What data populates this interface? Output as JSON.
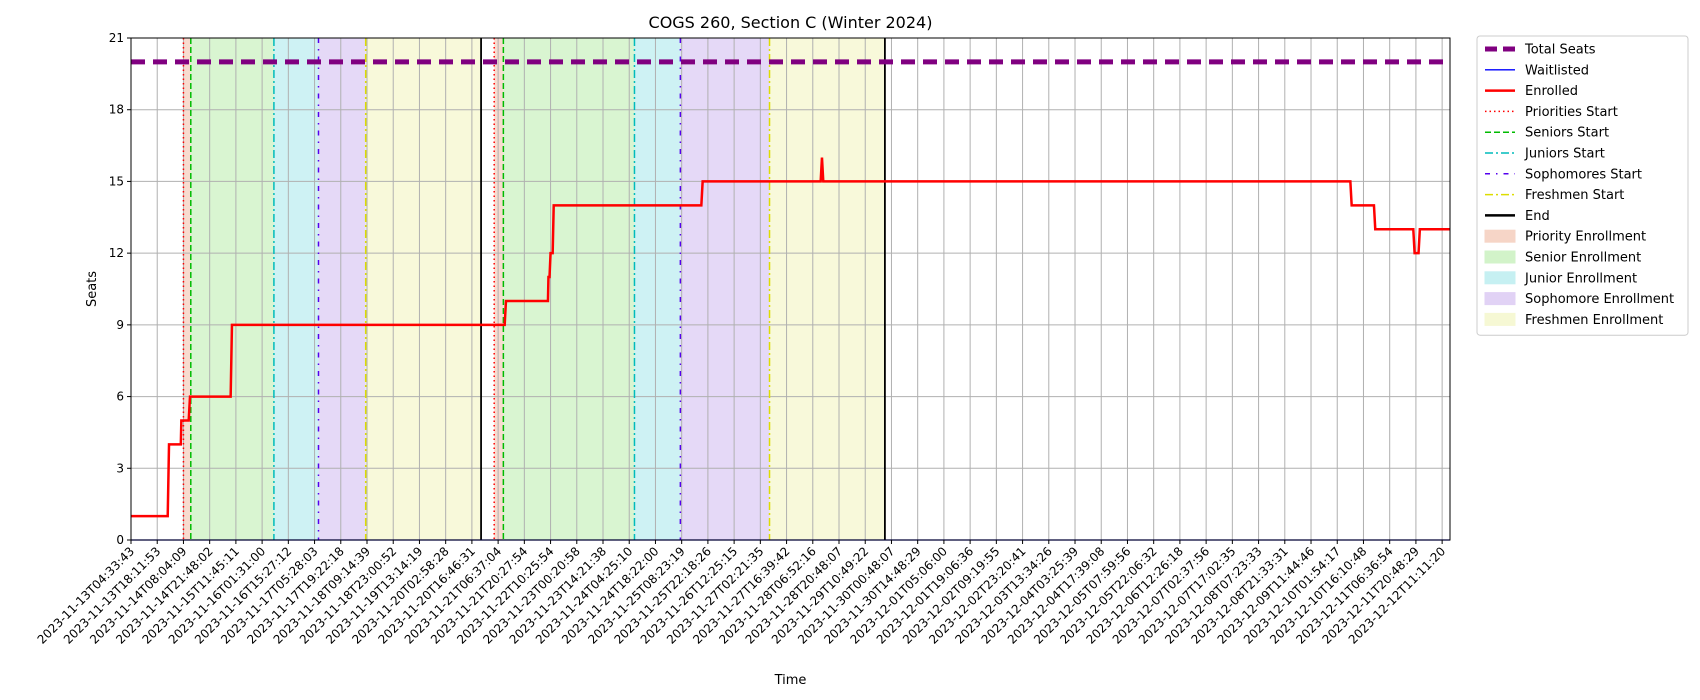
{
  "chart_data": {
    "type": "line",
    "title": "COGS 260, Section C (Winter 2024)",
    "xlabel": "Time",
    "ylabel": "Seats",
    "ylim": [
      0,
      21
    ],
    "yticks": [
      0,
      3,
      6,
      9,
      12,
      15,
      18,
      21
    ],
    "grid": true,
    "legend_position": "outside-right-top",
    "x_tick_labels": [
      "2023-11-13T04:33:43",
      "2023-11-13T18:11:53",
      "2023-11-14T08:04:09",
      "2023-11-14T21:48:02",
      "2023-11-15T11:45:11",
      "2023-11-16T01:31:00",
      "2023-11-16T15:27:12",
      "2023-11-17T05:28:03",
      "2023-11-17T19:22:18",
      "2023-11-18T09:14:39",
      "2023-11-18T23:00:52",
      "2023-11-19T13:14:19",
      "2023-11-20T02:58:28",
      "2023-11-20T16:46:31",
      "2023-11-21T06:37:04",
      "2023-11-21T20:27:54",
      "2023-11-22T10:25:54",
      "2023-11-23T00:20:58",
      "2023-11-23T14:21:38",
      "2023-11-24T04:25:10",
      "2023-11-24T18:22:00",
      "2023-11-25T08:23:19",
      "2023-11-25T22:18:26",
      "2023-11-26T12:25:15",
      "2023-11-27T02:21:35",
      "2023-11-27T16:39:42",
      "2023-11-28T06:52:16",
      "2023-11-28T20:48:07",
      "2023-11-29T10:49:22",
      "2023-11-30T00:48:07",
      "2023-11-30T14:48:29",
      "2023-12-01T05:06:00",
      "2023-12-01T19:06:36",
      "2023-12-02T09:19:55",
      "2023-12-02T23:20:41",
      "2023-12-03T13:34:26",
      "2023-12-04T03:25:39",
      "2023-12-04T17:39:08",
      "2023-12-05T07:59:56",
      "2023-12-05T22:06:32",
      "2023-12-06T12:26:18",
      "2023-12-07T02:37:56",
      "2023-12-07T17:02:35",
      "2023-12-08T07:23:33",
      "2023-12-08T21:33:31",
      "2023-12-09T11:44:46",
      "2023-12-10T01:54:17",
      "2023-12-10T16:10:48",
      "2023-12-11T06:36:54",
      "2023-12-11T20:48:29",
      "2023-12-12T11:11:20"
    ],
    "x_domain": [
      0,
      50.3
    ],
    "series": [
      {
        "name": "Total Seats",
        "color": "#800080",
        "style": "dashed-thick",
        "points": [
          [
            0,
            20
          ],
          [
            50.3,
            20
          ]
        ]
      },
      {
        "name": "Waitlisted",
        "color": "#0000ff",
        "style": "solid-thin",
        "points": [
          [
            0,
            0
          ],
          [
            50.3,
            0
          ]
        ]
      },
      {
        "name": "Enrolled",
        "color": "#ff0000",
        "style": "solid",
        "points": [
          [
            0,
            1
          ],
          [
            1.4,
            1
          ],
          [
            1.45,
            4
          ],
          [
            1.9,
            4
          ],
          [
            1.92,
            5
          ],
          [
            2.2,
            5
          ],
          [
            2.25,
            6
          ],
          [
            3.8,
            6
          ],
          [
            3.85,
            9
          ],
          [
            14.25,
            9
          ],
          [
            14.3,
            10
          ],
          [
            15.9,
            10
          ],
          [
            15.92,
            11
          ],
          [
            15.96,
            11
          ],
          [
            16.0,
            12
          ],
          [
            16.08,
            12
          ],
          [
            16.12,
            14
          ],
          [
            21.75,
            14
          ],
          [
            21.8,
            15
          ],
          [
            26.3,
            15
          ],
          [
            26.35,
            16
          ],
          [
            26.4,
            15
          ],
          [
            46.5,
            15
          ],
          [
            46.55,
            14
          ],
          [
            47.4,
            14
          ],
          [
            47.45,
            13
          ],
          [
            48.9,
            13
          ],
          [
            48.95,
            12
          ],
          [
            49.1,
            12
          ],
          [
            49.15,
            13
          ],
          [
            50.3,
            13
          ]
        ]
      }
    ],
    "vertical_lines": [
      {
        "name": "Priorities Start",
        "color": "#ff0000",
        "style": "dotted",
        "x": [
          2.0,
          13.85
        ]
      },
      {
        "name": "Seniors Start",
        "color": "#00bb00",
        "style": "dashed",
        "x": [
          2.28,
          14.2
        ]
      },
      {
        "name": "Juniors Start",
        "color": "#00bbbb",
        "style": "dashdot",
        "x": [
          5.45,
          19.2
        ]
      },
      {
        "name": "Sophomores Start",
        "color": "#5500ee",
        "style": "dashdot-sparse",
        "x": [
          7.15,
          20.95
        ]
      },
      {
        "name": "Freshmen Start",
        "color": "#dddd00",
        "style": "dashdot",
        "x": [
          8.95,
          24.35
        ]
      },
      {
        "name": "End",
        "color": "#000000",
        "style": "solid",
        "x": [
          13.35,
          28.75
        ]
      }
    ],
    "regions": [
      {
        "name": "Priority Enrollment",
        "color": "#f4c7b5",
        "spans": [
          [
            2.0,
            2.28
          ],
          [
            13.85,
            14.2
          ]
        ]
      },
      {
        "name": "Senior Enrollment",
        "color": "#c4efb8",
        "spans": [
          [
            2.28,
            5.45
          ],
          [
            14.2,
            19.2
          ]
        ]
      },
      {
        "name": "Junior Enrollment",
        "color": "#b3ebee",
        "spans": [
          [
            5.45,
            7.15
          ],
          [
            19.2,
            20.95
          ]
        ]
      },
      {
        "name": "Sophomore Enrollment",
        "color": "#d7c4f2",
        "spans": [
          [
            7.15,
            8.95
          ],
          [
            20.95,
            24.35
          ]
        ]
      },
      {
        "name": "Freshmen Enrollment",
        "color": "#f4f6c6",
        "spans": [
          [
            8.95,
            13.35
          ],
          [
            24.35,
            28.75
          ]
        ]
      }
    ]
  }
}
